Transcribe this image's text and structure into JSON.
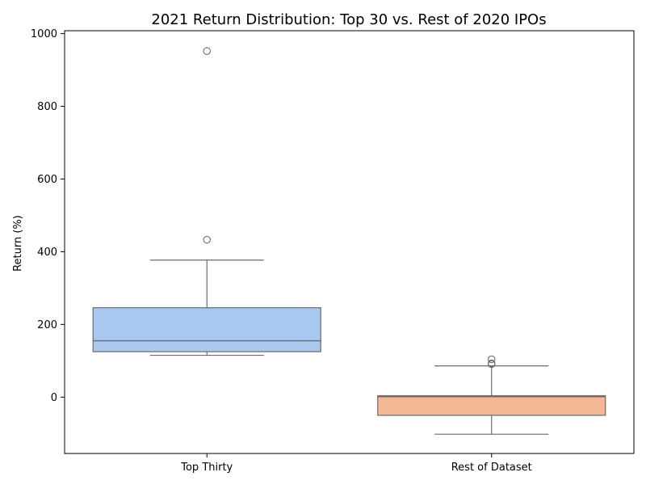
{
  "chart_data": {
    "type": "box",
    "title": "2021 Return Distribution: Top 30 vs. Rest of 2020 IPOs",
    "xlabel": "",
    "ylabel": "Return (%)",
    "ylim": [
      -155,
      1008
    ],
    "yticks": [
      0,
      200,
      400,
      600,
      800,
      1000
    ],
    "grid": false,
    "categories": [
      "Top Thirty",
      "Rest of Dataset"
    ],
    "boxes": [
      {
        "name": "Top Thirty",
        "color": "#a9c8ef",
        "whisker_low": 115,
        "q1": 125,
        "median": 155,
        "q3": 246,
        "whisker_high": 377,
        "outliers": [
          433,
          952
        ]
      },
      {
        "name": "Rest of Dataset",
        "color": "#f4b994",
        "whisker_low": -102,
        "q1": -50,
        "median": 1,
        "q3": 4,
        "whisker_high": 86,
        "outliers": [
          91,
          93,
          104
        ]
      }
    ]
  }
}
